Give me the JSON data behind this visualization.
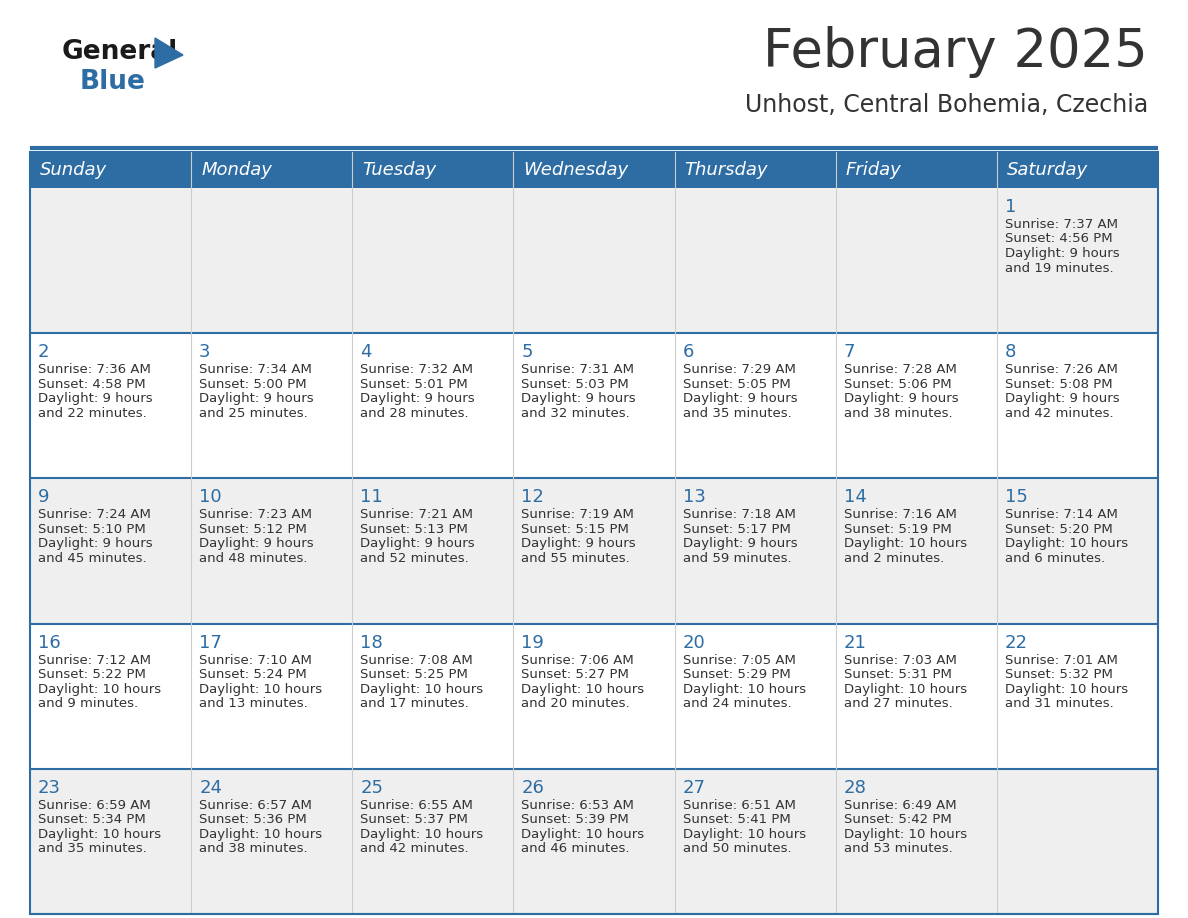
{
  "title": "February 2025",
  "subtitle": "Unhost, Central Bohemia, Czechia",
  "days_of_week": [
    "Sunday",
    "Monday",
    "Tuesday",
    "Wednesday",
    "Thursday",
    "Friday",
    "Saturday"
  ],
  "header_bg": "#2e6da4",
  "header_text": "#ffffff",
  "cell_bg_odd": "#efefef",
  "cell_bg_even": "#ffffff",
  "separator_color": "#2e6da4",
  "text_color": "#333333",
  "day_num_color": "#2e6da4",
  "logo_general_color": "#1a1a1a",
  "logo_blue_color": "#2e6da4",
  "calendar_data": [
    [
      null,
      null,
      null,
      null,
      null,
      null,
      {
        "day": 1,
        "sunrise": "7:37 AM",
        "sunset": "4:56 PM",
        "daylight": "9 hours",
        "daylight2": "and 19 minutes."
      }
    ],
    [
      {
        "day": 2,
        "sunrise": "7:36 AM",
        "sunset": "4:58 PM",
        "daylight": "9 hours",
        "daylight2": "and 22 minutes."
      },
      {
        "day": 3,
        "sunrise": "7:34 AM",
        "sunset": "5:00 PM",
        "daylight": "9 hours",
        "daylight2": "and 25 minutes."
      },
      {
        "day": 4,
        "sunrise": "7:32 AM",
        "sunset": "5:01 PM",
        "daylight": "9 hours",
        "daylight2": "and 28 minutes."
      },
      {
        "day": 5,
        "sunrise": "7:31 AM",
        "sunset": "5:03 PM",
        "daylight": "9 hours",
        "daylight2": "and 32 minutes."
      },
      {
        "day": 6,
        "sunrise": "7:29 AM",
        "sunset": "5:05 PM",
        "daylight": "9 hours",
        "daylight2": "and 35 minutes."
      },
      {
        "day": 7,
        "sunrise": "7:28 AM",
        "sunset": "5:06 PM",
        "daylight": "9 hours",
        "daylight2": "and 38 minutes."
      },
      {
        "day": 8,
        "sunrise": "7:26 AM",
        "sunset": "5:08 PM",
        "daylight": "9 hours",
        "daylight2": "and 42 minutes."
      }
    ],
    [
      {
        "day": 9,
        "sunrise": "7:24 AM",
        "sunset": "5:10 PM",
        "daylight": "9 hours",
        "daylight2": "and 45 minutes."
      },
      {
        "day": 10,
        "sunrise": "7:23 AM",
        "sunset": "5:12 PM",
        "daylight": "9 hours",
        "daylight2": "and 48 minutes."
      },
      {
        "day": 11,
        "sunrise": "7:21 AM",
        "sunset": "5:13 PM",
        "daylight": "9 hours",
        "daylight2": "and 52 minutes."
      },
      {
        "day": 12,
        "sunrise": "7:19 AM",
        "sunset": "5:15 PM",
        "daylight": "9 hours",
        "daylight2": "and 55 minutes."
      },
      {
        "day": 13,
        "sunrise": "7:18 AM",
        "sunset": "5:17 PM",
        "daylight": "9 hours",
        "daylight2": "and 59 minutes."
      },
      {
        "day": 14,
        "sunrise": "7:16 AM",
        "sunset": "5:19 PM",
        "daylight": "10 hours",
        "daylight2": "and 2 minutes."
      },
      {
        "day": 15,
        "sunrise": "7:14 AM",
        "sunset": "5:20 PM",
        "daylight": "10 hours",
        "daylight2": "and 6 minutes."
      }
    ],
    [
      {
        "day": 16,
        "sunrise": "7:12 AM",
        "sunset": "5:22 PM",
        "daylight": "10 hours",
        "daylight2": "and 9 minutes."
      },
      {
        "day": 17,
        "sunrise": "7:10 AM",
        "sunset": "5:24 PM",
        "daylight": "10 hours",
        "daylight2": "and 13 minutes."
      },
      {
        "day": 18,
        "sunrise": "7:08 AM",
        "sunset": "5:25 PM",
        "daylight": "10 hours",
        "daylight2": "and 17 minutes."
      },
      {
        "day": 19,
        "sunrise": "7:06 AM",
        "sunset": "5:27 PM",
        "daylight": "10 hours",
        "daylight2": "and 20 minutes."
      },
      {
        "day": 20,
        "sunrise": "7:05 AM",
        "sunset": "5:29 PM",
        "daylight": "10 hours",
        "daylight2": "and 24 minutes."
      },
      {
        "day": 21,
        "sunrise": "7:03 AM",
        "sunset": "5:31 PM",
        "daylight": "10 hours",
        "daylight2": "and 27 minutes."
      },
      {
        "day": 22,
        "sunrise": "7:01 AM",
        "sunset": "5:32 PM",
        "daylight": "10 hours",
        "daylight2": "and 31 minutes."
      }
    ],
    [
      {
        "day": 23,
        "sunrise": "6:59 AM",
        "sunset": "5:34 PM",
        "daylight": "10 hours",
        "daylight2": "and 35 minutes."
      },
      {
        "day": 24,
        "sunrise": "6:57 AM",
        "sunset": "5:36 PM",
        "daylight": "10 hours",
        "daylight2": "and 38 minutes."
      },
      {
        "day": 25,
        "sunrise": "6:55 AM",
        "sunset": "5:37 PM",
        "daylight": "10 hours",
        "daylight2": "and 42 minutes."
      },
      {
        "day": 26,
        "sunrise": "6:53 AM",
        "sunset": "5:39 PM",
        "daylight": "10 hours",
        "daylight2": "and 46 minutes."
      },
      {
        "day": 27,
        "sunrise": "6:51 AM",
        "sunset": "5:41 PM",
        "daylight": "10 hours",
        "daylight2": "and 50 minutes."
      },
      {
        "day": 28,
        "sunrise": "6:49 AM",
        "sunset": "5:42 PM",
        "daylight": "10 hours",
        "daylight2": "and 53 minutes."
      },
      null
    ]
  ]
}
